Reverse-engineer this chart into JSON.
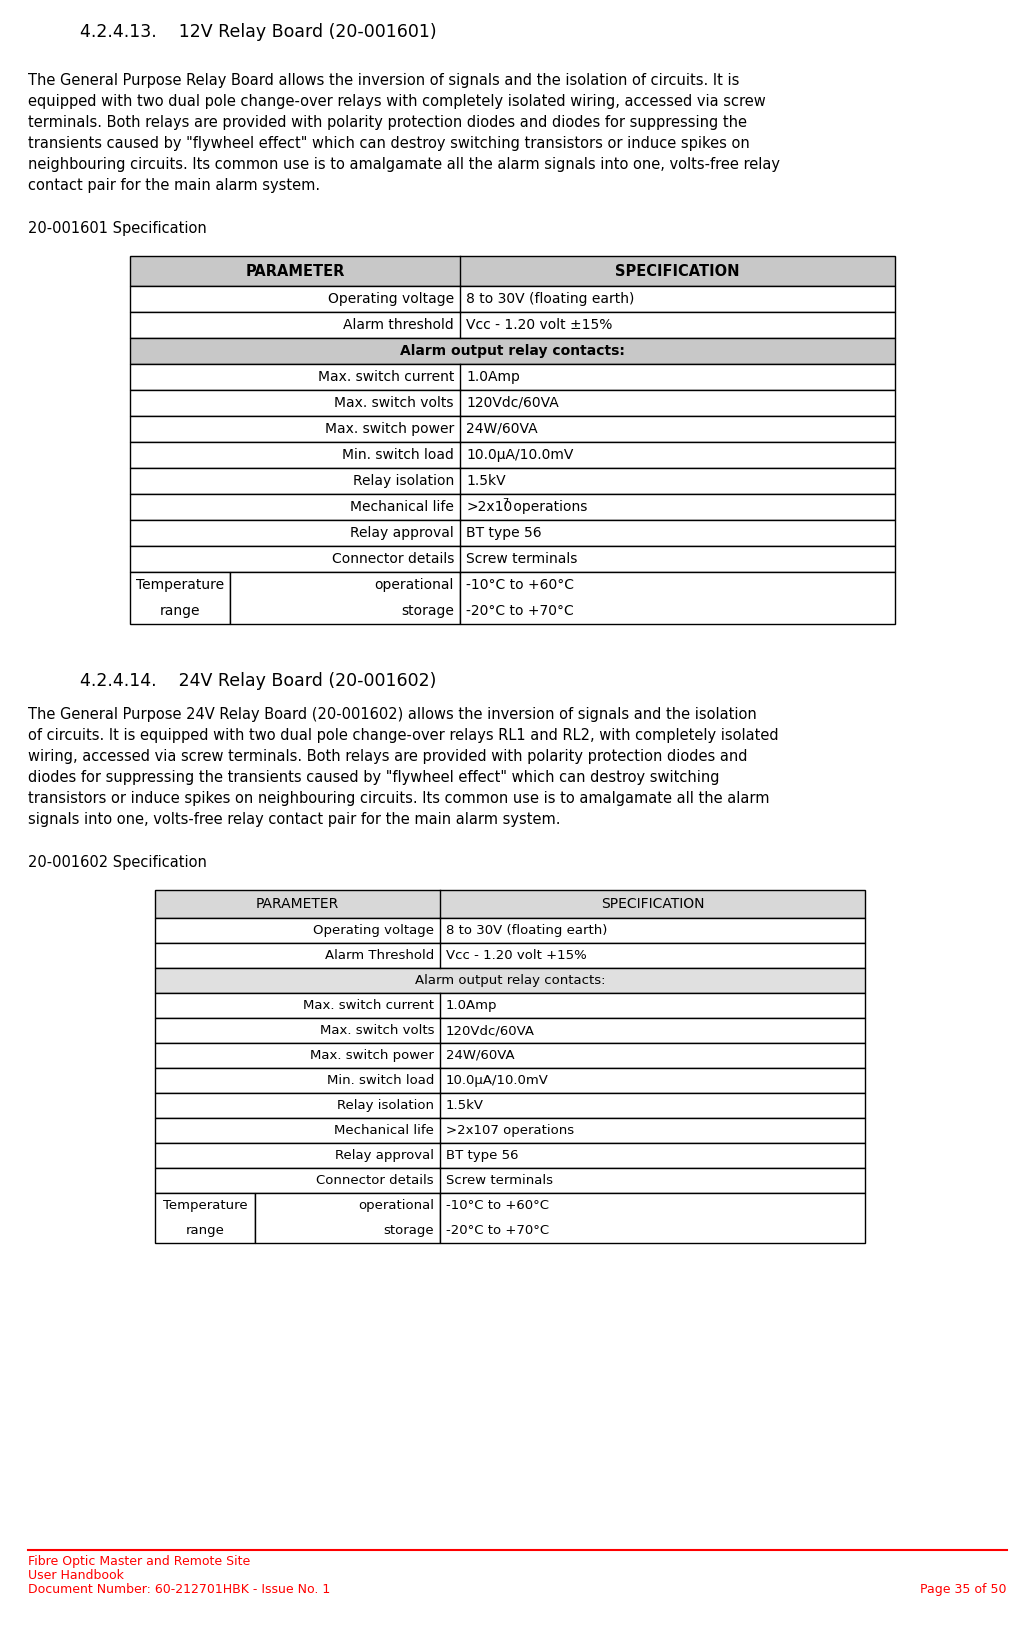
{
  "title1": "4.2.4.13.    12V Relay Board (20-001601)",
  "title2": "4.2.4.14.    24V Relay Board (20-001602)",
  "para1_lines": [
    "The General Purpose Relay Board allows the inversion of signals and the isolation of circuits. It is",
    "equipped with two dual pole change-over relays with completely isolated wiring, accessed via screw",
    "terminals. Both relays are provided with polarity protection diodes and diodes for suppressing the",
    "transients caused by \"flywheel effect\" which can destroy switching transistors or induce spikes on",
    "neighbouring circuits. Its common use is to amalgamate all the alarm signals into one, volts-free relay",
    "contact pair for the main alarm system."
  ],
  "spec1_title": "20-001601 Specification",
  "para2_lines": [
    "The General Purpose 24V Relay Board (20-001602) allows the inversion of signals and the isolation",
    "of circuits. It is equipped with two dual pole change-over relays RL1 and RL2, with completely isolated",
    "wiring, accessed via screw terminals. Both relays are provided with polarity protection diodes and",
    "diodes for suppressing the transients caused by \"flywheel effect\" which can destroy switching",
    "transistors or induce spikes on neighbouring circuits. Its common use is to amalgamate all the alarm",
    "signals into one, volts-free relay contact pair for the main alarm system."
  ],
  "spec2_title": "20-001602 Specification",
  "table1_header": [
    "PARAMETER",
    "SPECIFICATION"
  ],
  "table1_rows": [
    {
      "type": "data",
      "param": "Operating voltage",
      "value": "8 to 30V (floating earth)"
    },
    {
      "type": "data",
      "param": "Alarm threshold",
      "value": "Vcc - 1.20 volt ±15%"
    },
    {
      "type": "subheader",
      "param": "Alarm output relay contacts:",
      "value": ""
    },
    {
      "type": "data",
      "param": "Max. switch current",
      "value": "1.0Amp"
    },
    {
      "type": "data",
      "param": "Max. switch volts",
      "value": "120Vdc/60VA"
    },
    {
      "type": "data",
      "param": "Max. switch power",
      "value": "24W/60VA"
    },
    {
      "type": "data",
      "param": "Min. switch load",
      "value": "10.0µA/10.0mV"
    },
    {
      "type": "data",
      "param": "Relay isolation",
      "value": "1.5kV"
    },
    {
      "type": "data_super",
      "param": "Mechanical life",
      "value_base": ">2x10",
      "value_sup": "7",
      "value_rest": " operations"
    },
    {
      "type": "data",
      "param": "Relay approval",
      "value": "BT type 56"
    },
    {
      "type": "data",
      "param": "Connector details",
      "value": "Screw terminals"
    },
    {
      "type": "temp",
      "col1": "Temperature\nrange",
      "col2": "operational\nstorage",
      "col3": "-10°C to +60°C\n-20°C to +70°C"
    }
  ],
  "table2_header": [
    "PARAMETER",
    "SPECIFICATION"
  ],
  "table2_rows": [
    {
      "type": "data",
      "param": "Operating voltage",
      "value": "8 to 30V (floating earth)"
    },
    {
      "type": "data",
      "param": "Alarm Threshold",
      "value": "Vcc - 1.20 volt +15%"
    },
    {
      "type": "subheader_light",
      "param": "Alarm output relay contacts:",
      "value": ""
    },
    {
      "type": "data",
      "param": "Max. switch current",
      "value": "1.0Amp"
    },
    {
      "type": "data",
      "param": "Max. switch volts",
      "value": "120Vdc/60VA"
    },
    {
      "type": "data",
      "param": "Max. switch power",
      "value": "24W/60VA"
    },
    {
      "type": "data",
      "param": "Min. switch load",
      "value": "10.0µA/10.0mV"
    },
    {
      "type": "data",
      "param": "Relay isolation",
      "value": "1.5kV"
    },
    {
      "type": "data",
      "param": "Mechanical life",
      "value": ">2x107 operations"
    },
    {
      "type": "data",
      "param": "Relay approval",
      "value": "BT type 56"
    },
    {
      "type": "data",
      "param": "Connector details",
      "value": "Screw terminals"
    },
    {
      "type": "temp",
      "col1": "Temperature\nrange",
      "col2": "operational\nstorage",
      "col3": "-10°C to +60°C\n-20°C to +70°C"
    }
  ],
  "footer_line1": "Fibre Optic Master and Remote Site",
  "footer_line2": "User Handbook",
  "footer_line3": "Document Number: 60-212701HBK - Issue No. 1",
  "footer_page": "Page 35 of 50",
  "footer_color": "#FF0000",
  "bg_color": "#FFFFFF",
  "table1_header_bg": "#C8C8C8",
  "table1_subheader_bg": "#C8C8C8",
  "table2_header_bg": "#D8D8D8",
  "table2_subheader_bg": "#E0E0E0",
  "table_row_bg": "#FFFFFF",
  "text_color": "#000000"
}
